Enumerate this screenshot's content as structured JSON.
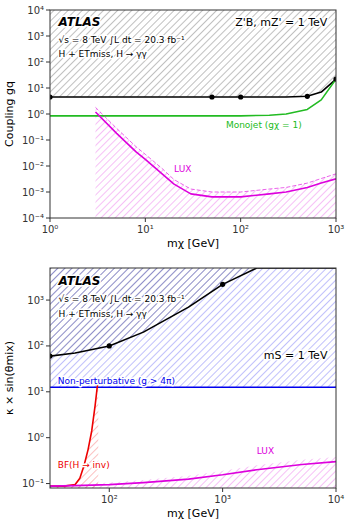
{
  "chart_data": [
    {
      "type": "line",
      "title": "Z'B, mZ' = 1 TeV",
      "xlabel": "mχ [GeV]",
      "ylabel": "Coupling gq",
      "annotations": [
        "ATLAS",
        "√s = 8 TeV   ∫L dt = 20.3 fb⁻¹",
        "H + ETmiss, H → γγ"
      ],
      "log": true,
      "grid": false,
      "xlim": [
        1,
        1000
      ],
      "ylim": [
        0.0001,
        10000.0
      ],
      "xticks": [
        {
          "value": 1,
          "label": "10⁰"
        },
        {
          "value": 10,
          "label": "10¹"
        },
        {
          "value": 100,
          "label": "10²"
        },
        {
          "value": 1000,
          "label": "10³"
        }
      ],
      "yticks": [
        {
          "value": 0.0001,
          "label": "10⁻⁴"
        },
        {
          "value": 0.001,
          "label": "10⁻³"
        },
        {
          "value": 0.01,
          "label": "10⁻²"
        },
        {
          "value": 0.1,
          "label": "10⁻¹"
        },
        {
          "value": 1,
          "label": "10⁰"
        },
        {
          "value": 10,
          "label": "10¹"
        },
        {
          "value": 100,
          "label": "10²"
        },
        {
          "value": 1000,
          "label": "10³"
        },
        {
          "value": 10000,
          "label": "10⁴"
        }
      ],
      "series": [
        {
          "type": "area_above",
          "color": "#000000",
          "x": [
            1,
            3,
            5,
            10,
            30,
            50,
            100,
            200,
            300,
            500,
            700,
            1000
          ],
          "values": [
            4.5,
            4.5,
            4.5,
            4.5,
            4.5,
            4.5,
            4.5,
            4.5,
            4.5,
            4.8,
            7.0,
            22
          ]
        },
        {
          "type": "scatter",
          "marker": "circle",
          "color": "#000000",
          "x": [
            1,
            50,
            100,
            500,
            1000
          ],
          "values": [
            4.5,
            4.5,
            4.5,
            4.8,
            22
          ]
        },
        {
          "type": "line",
          "name": "Monojet (gχ = 1)",
          "color": "#22bb22",
          "x": [
            1,
            3,
            5,
            10,
            30,
            50,
            100,
            200,
            300,
            500,
            700,
            1000
          ],
          "values": [
            0.85,
            0.85,
            0.85,
            0.85,
            0.85,
            0.85,
            0.85,
            0.9,
            1.0,
            1.5,
            3.5,
            22
          ]
        },
        {
          "type": "line",
          "name": "LUX",
          "color": "#dd00dd",
          "x": [
            3,
            5,
            8,
            10,
            15,
            20,
            30,
            50,
            100,
            200,
            300,
            500,
            700,
            1000
          ],
          "values": [
            1.2,
            0.18,
            0.035,
            0.018,
            0.005,
            0.002,
            0.00085,
            0.00065,
            0.00065,
            0.00085,
            0.001,
            0.0015,
            0.0022,
            0.0032
          ]
        },
        {
          "type": "area_below",
          "line_style": "dashed",
          "color": "#dd00dd",
          "x": [
            3,
            5,
            8,
            10,
            15,
            20,
            30,
            50,
            100,
            200,
            300,
            500,
            700,
            1000
          ],
          "values": [
            1.8,
            0.28,
            0.055,
            0.028,
            0.008,
            0.003,
            0.0013,
            0.001,
            0.001,
            0.0013,
            0.0015,
            0.0022,
            0.0033,
            0.005
          ]
        }
      ]
    },
    {
      "type": "line",
      "title": "mS = 1 TeV",
      "xlabel": "mχ [GeV]",
      "ylabel": "κ × sin(θmix)",
      "annotations": [
        "ATLAS",
        "√s = 8 TeV   ∫L dt = 20.3 fb⁻¹",
        "H + ETmiss, H → γγ"
      ],
      "log": true,
      "grid": false,
      "xlim": [
        30,
        10000
      ],
      "ylim": [
        0.08,
        5000
      ],
      "xticks": [
        {
          "value": 100,
          "label": "10²"
        },
        {
          "value": 1000,
          "label": "10³"
        },
        {
          "value": 10000,
          "label": "10⁴"
        }
      ],
      "yticks": [
        {
          "value": 0.1,
          "label": "10⁻¹"
        },
        {
          "value": 1,
          "label": "10⁰"
        },
        {
          "value": 10,
          "label": "10¹"
        },
        {
          "value": 100,
          "label": "10²"
        },
        {
          "value": 1000,
          "label": "10³"
        }
      ],
      "series": [
        {
          "type": "area_above",
          "color": "#000000",
          "x": [
            30,
            50,
            100,
            200,
            500,
            1000,
            2000,
            5000,
            10000
          ],
          "values": [
            60,
            70,
            100,
            200,
            700,
            2200,
            5000,
            5000,
            5000
          ]
        },
        {
          "type": "scatter",
          "marker": "circle",
          "color": "#000000",
          "x": [
            30,
            100,
            1000
          ],
          "values": [
            60,
            100,
            2200
          ]
        },
        {
          "type": "hline",
          "name": "Non-perturbative (g > 4π)",
          "color": "#0000ee",
          "values": [
            12.57
          ]
        },
        {
          "type": "area_below",
          "name": "BF(H → inv)",
          "color": "#ee0000",
          "x": [
            30,
            40,
            50,
            55,
            60,
            65,
            70,
            75,
            80
          ],
          "values": [
            0.088,
            0.088,
            0.095,
            0.13,
            0.25,
            0.55,
            1.4,
            5.0,
            20.0
          ]
        },
        {
          "type": "line",
          "name": "LUX",
          "color": "#dd00dd",
          "x": [
            30,
            50,
            100,
            200,
            500,
            1000,
            2000,
            5000,
            10000
          ],
          "values": [
            0.088,
            0.09,
            0.095,
            0.105,
            0.125,
            0.155,
            0.2,
            0.26,
            0.3
          ]
        },
        {
          "type": "area_below",
          "line_style": "none",
          "color": "#dd00dd",
          "x": [
            30,
            50,
            100,
            200,
            500,
            1000,
            2000,
            5000,
            10000
          ],
          "values": [
            0.092,
            0.095,
            0.105,
            0.12,
            0.148,
            0.19,
            0.25,
            0.33,
            0.38
          ]
        }
      ]
    }
  ]
}
